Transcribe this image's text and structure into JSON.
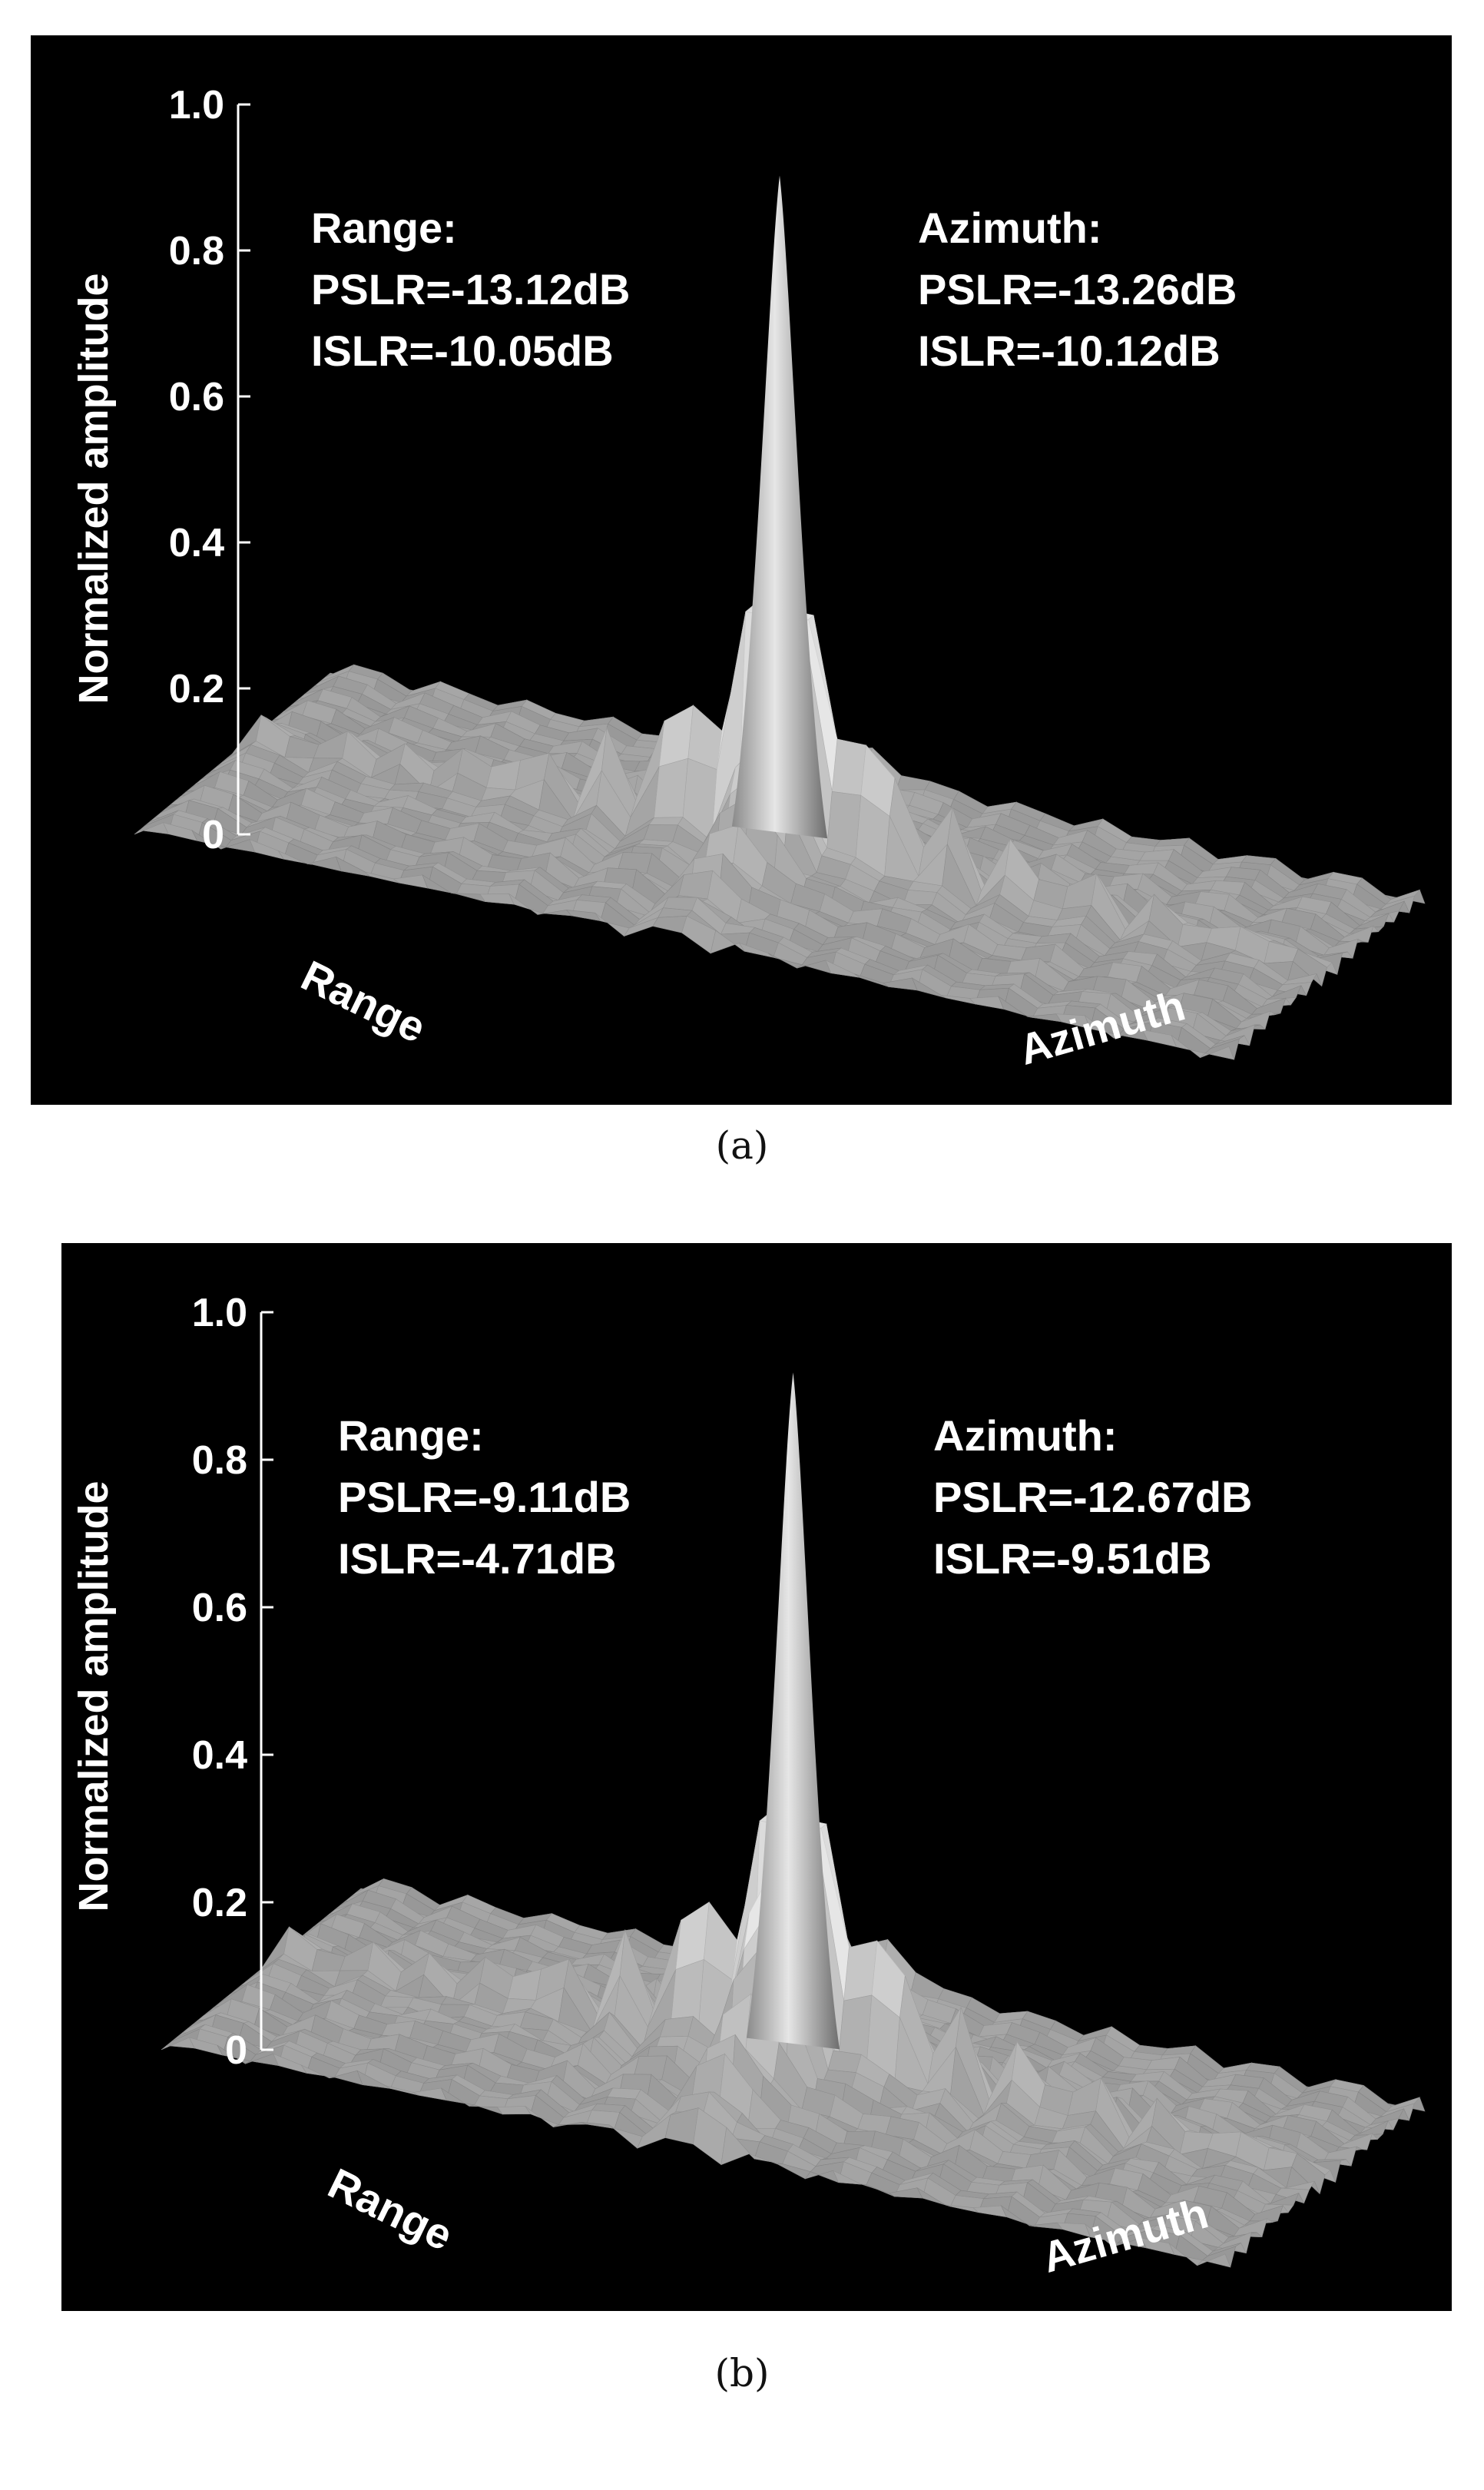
{
  "chart_data": [
    {
      "panel": "a",
      "type": "surface3d",
      "caption": "(a)",
      "zlabel": "Normalized amplitude",
      "zlim": [
        0,
        1.0
      ],
      "z_ticks": [
        "0",
        "0.2",
        "0.4",
        "0.6",
        "0.8",
        "1.0"
      ],
      "xlabel": "Range",
      "ylabel": "Azimuth",
      "peak": 0.95,
      "sidelobe_range": 0.21,
      "sidelobe_azimuth": 0.21,
      "annotations": {
        "range": {
          "title": "Range:",
          "pslr": "PSLR=-13.12dB",
          "islr": "ISLR=-10.05dB"
        },
        "azimuth": {
          "title": "Azimuth:",
          "pslr": "PSLR=-13.26dB",
          "islr": "ISLR=-10.12dB"
        }
      },
      "colors": {
        "background": "#000000",
        "surface": "#bdbdbd"
      }
    },
    {
      "panel": "b",
      "type": "surface3d",
      "caption": "(b)",
      "zlabel": "Normalized amplitude",
      "zlim": [
        0,
        1.0
      ],
      "z_ticks": [
        "0",
        "0.2",
        "0.4",
        "0.6",
        "0.8",
        "1.0"
      ],
      "xlabel": "Range",
      "ylabel": "Azimuth",
      "peak": 0.96,
      "sidelobe_range": 0.35,
      "sidelobe_azimuth": 0.23,
      "annotations": {
        "range": {
          "title": "Range:",
          "pslr": "PSLR=-9.11dB",
          "islr": "ISLR=-4.71dB"
        },
        "azimuth": {
          "title": "Azimuth:",
          "pslr": "PSLR=-12.67dB",
          "islr": "ISLR=-9.51dB"
        }
      },
      "colors": {
        "background": "#000000",
        "surface": "#bdbdbd"
      }
    }
  ]
}
